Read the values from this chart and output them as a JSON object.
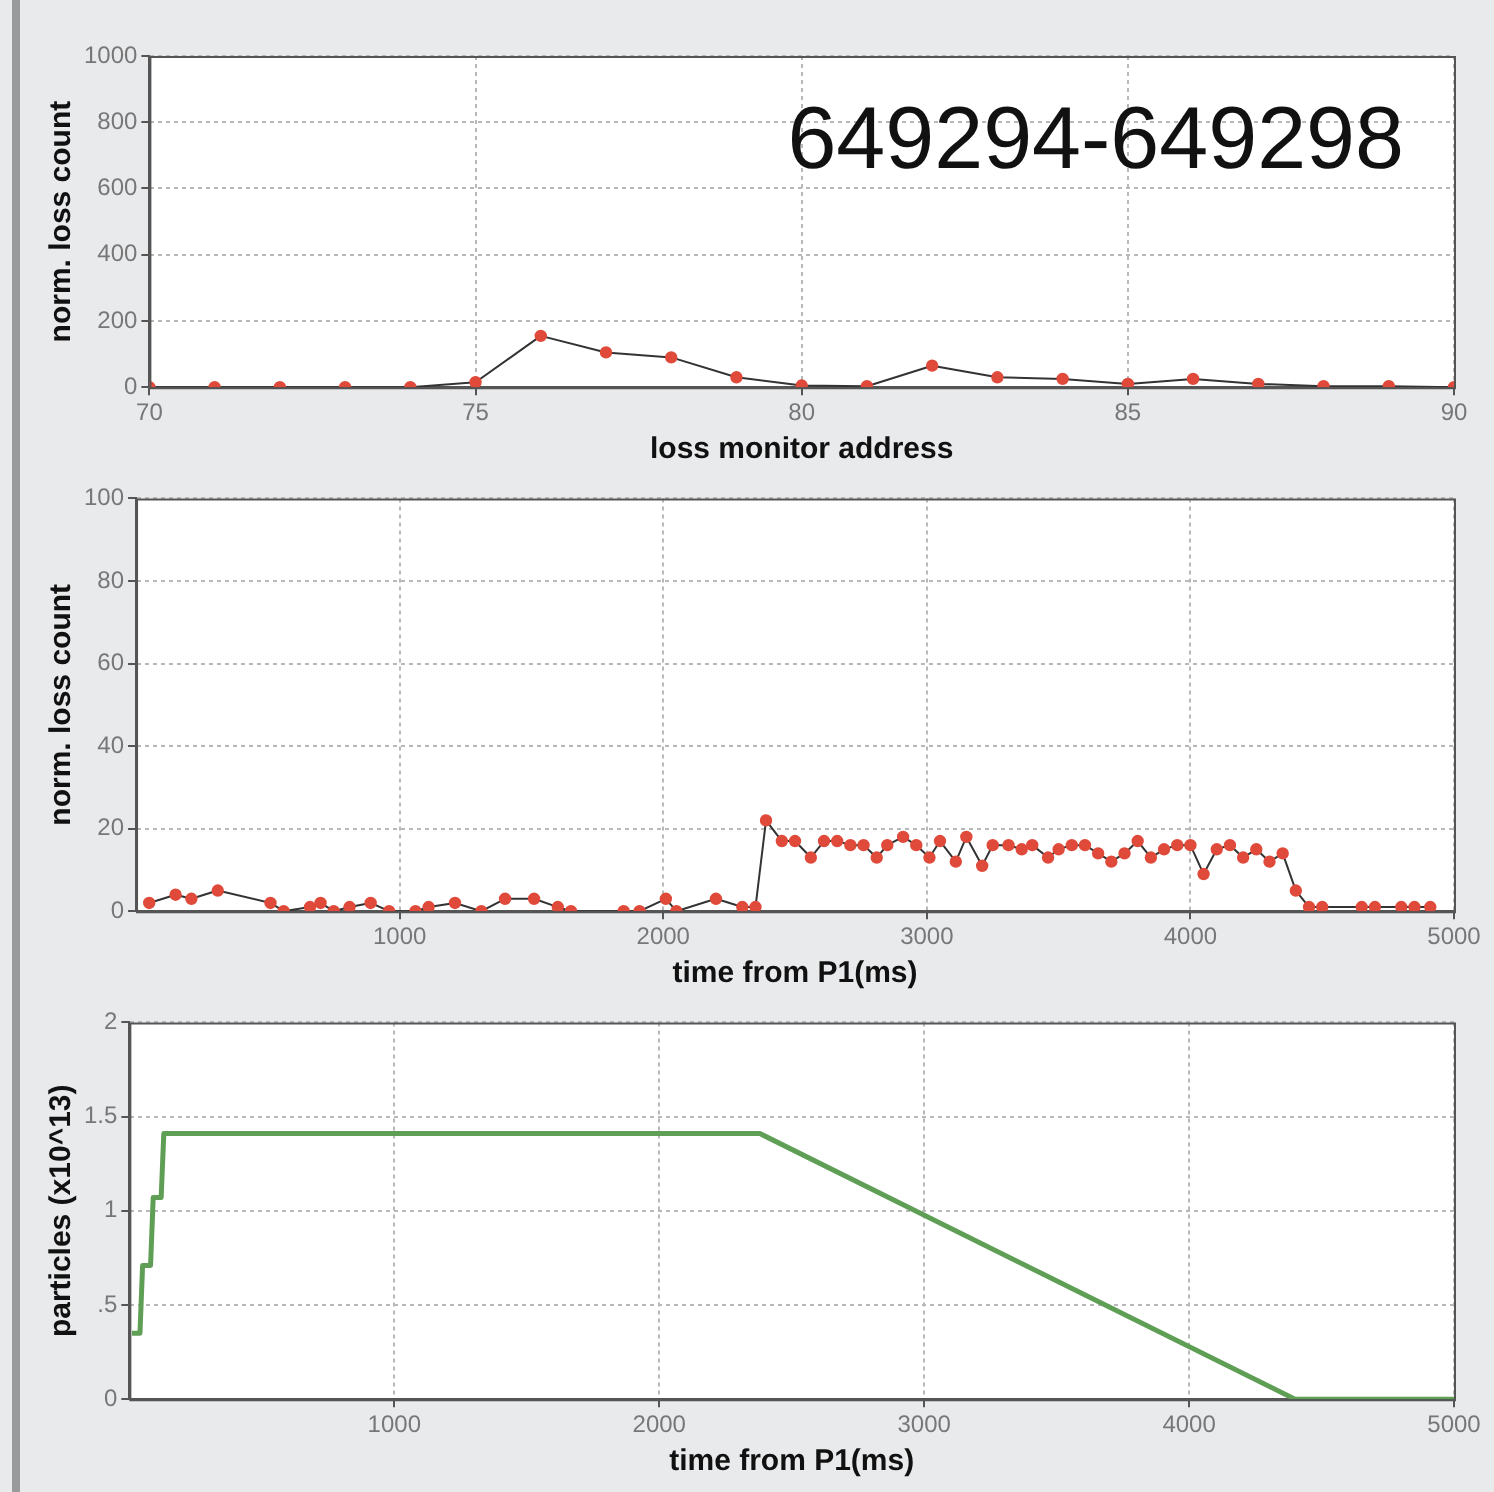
{
  "chart_data": [
    {
      "type": "line",
      "xlabel": "loss monitor address",
      "ylabel": "norm. loss count",
      "annotations": [
        "649294-649298"
      ],
      "xlim": [
        70,
        90
      ],
      "xticks": [
        70,
        75,
        80,
        85,
        90
      ],
      "ylim": [
        0,
        1000
      ],
      "yticks": [
        0,
        200,
        400,
        600,
        800,
        1000
      ],
      "grid": true,
      "marker": "circle",
      "legend": false,
      "x": [
        70,
        71,
        72,
        73,
        74,
        75,
        76,
        77,
        78,
        79,
        80,
        81,
        82,
        83,
        84,
        85,
        86,
        87,
        88,
        89,
        90
      ],
      "series": [
        {
          "color": "#e04a3a",
          "values": [
            0,
            0,
            0,
            0,
            0,
            15,
            155,
            105,
            90,
            30,
            5,
            3,
            65,
            30,
            25,
            10,
            25,
            10,
            3,
            3,
            0
          ]
        }
      ]
    },
    {
      "type": "line",
      "xlabel": "time from P1(ms)",
      "ylabel": "norm. loss count",
      "xlim": [
        0,
        5000
      ],
      "xticks": [
        1000,
        2000,
        3000,
        4000,
        5000
      ],
      "ylim": [
        0,
        100
      ],
      "yticks": [
        0,
        20,
        40,
        60,
        80,
        100
      ],
      "grid": true,
      "marker": "circle",
      "legend": false,
      "x": [
        50,
        150,
        210,
        310,
        510,
        560,
        660,
        700,
        750,
        810,
        890,
        960,
        1060,
        1110,
        1210,
        1310,
        1400,
        1510,
        1600,
        1650,
        1850,
        1910,
        2010,
        2050,
        2200,
        2300,
        2350,
        2390,
        2450,
        2500,
        2560,
        2610,
        2660,
        2710,
        2760,
        2810,
        2850,
        2910,
        2960,
        3010,
        3050,
        3110,
        3150,
        3210,
        3250,
        3310,
        3360,
        3400,
        3460,
        3500,
        3550,
        3600,
        3650,
        3700,
        3750,
        3800,
        3850,
        3900,
        3950,
        4000,
        4050,
        4100,
        4150,
        4200,
        4250,
        4300,
        4350,
        4400,
        4450,
        4500,
        4650,
        4700,
        4800,
        4850,
        4910
      ],
      "series": [
        {
          "color": "#e04a3a",
          "values": [
            2,
            4,
            3,
            5,
            2,
            0,
            1,
            2,
            0,
            1,
            2,
            0,
            0,
            1,
            2,
            0,
            3,
            3,
            1,
            0,
            0,
            0,
            3,
            0,
            3,
            1,
            1,
            22,
            17,
            17,
            13,
            17,
            17,
            16,
            16,
            13,
            16,
            18,
            16,
            13,
            17,
            12,
            18,
            11,
            16,
            16,
            15,
            16,
            13,
            15,
            16,
            16,
            14,
            12,
            14,
            17,
            13,
            15,
            16,
            16,
            9,
            15,
            16,
            13,
            15,
            12,
            14,
            5,
            1,
            1,
            1,
            1,
            1,
            1,
            1
          ]
        }
      ]
    },
    {
      "type": "line",
      "xlabel": "time from P1(ms)",
      "ylabel": "particles (x10^13)",
      "xlim": [
        0,
        5000
      ],
      "xticks": [
        1000,
        2000,
        3000,
        4000,
        5000
      ],
      "ylim": [
        0,
        2
      ],
      "yticks": [
        0,
        {
          "value": 0.5,
          "label": ".5"
        },
        1,
        1.5,
        2
      ],
      "grid": true,
      "marker": "none",
      "legend": false,
      "x": [
        10,
        40,
        50,
        80,
        90,
        120,
        130,
        2380,
        4400,
        5000
      ],
      "series": [
        {
          "color": "#5f9e55",
          "values": [
            0.35,
            0.35,
            0.71,
            0.71,
            1.07,
            1.07,
            1.41,
            1.41,
            0,
            0
          ]
        }
      ]
    }
  ]
}
